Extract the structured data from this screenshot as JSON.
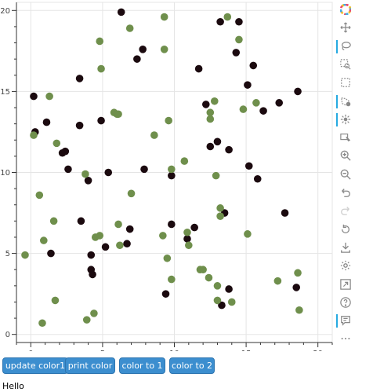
{
  "chart_data": {
    "type": "scatter",
    "xlim": [
      -1,
      21
    ],
    "ylim": [
      -0.5,
      20.5
    ],
    "x_ticks": [
      0,
      5,
      10,
      15,
      20
    ],
    "y_ticks": [
      0,
      5,
      10,
      15,
      20
    ],
    "grid": true,
    "colors": {
      "dark": "#1b0a0f",
      "green": "#6f8f4c"
    },
    "series": [
      {
        "color": "#1b0a0f",
        "points": [
          [
            0.2,
            14.7
          ],
          [
            0.3,
            12.5
          ],
          [
            1.1,
            13.1
          ],
          [
            1.4,
            5.0
          ],
          [
            2.2,
            11.2
          ],
          [
            2.4,
            11.3
          ],
          [
            2.6,
            10.2
          ],
          [
            3.4,
            15.8
          ],
          [
            3.4,
            12.9
          ],
          [
            3.5,
            7.0
          ],
          [
            4.0,
            9.5
          ],
          [
            4.2,
            4.9
          ],
          [
            4.2,
            4.0
          ],
          [
            4.3,
            3.7
          ],
          [
            4.9,
            13.2
          ],
          [
            5.2,
            5.4
          ],
          [
            5.4,
            10.0
          ],
          [
            6.3,
            19.9
          ],
          [
            6.7,
            5.6
          ],
          [
            6.9,
            6.5
          ],
          [
            7.4,
            17.0
          ],
          [
            7.8,
            17.6
          ],
          [
            7.9,
            10.2
          ],
          [
            9.4,
            2.5
          ],
          [
            9.8,
            9.8
          ],
          [
            9.8,
            6.8
          ],
          [
            10.9,
            5.9
          ],
          [
            11.4,
            6.6
          ],
          [
            11.7,
            16.4
          ],
          [
            12.2,
            14.2
          ],
          [
            12.5,
            11.6
          ],
          [
            13.0,
            11.9
          ],
          [
            13.2,
            19.3
          ],
          [
            13.3,
            1.8
          ],
          [
            13.5,
            7.5
          ],
          [
            13.8,
            11.4
          ],
          [
            13.8,
            2.8
          ],
          [
            14.3,
            17.4
          ],
          [
            14.5,
            19.3
          ],
          [
            15.1,
            15.4
          ],
          [
            15.2,
            10.4
          ],
          [
            15.5,
            16.6
          ],
          [
            15.8,
            9.6
          ],
          [
            16.2,
            13.8
          ],
          [
            17.3,
            14.3
          ],
          [
            17.7,
            7.5
          ],
          [
            18.5,
            2.9
          ],
          [
            18.6,
            15.0
          ]
        ]
      },
      {
        "color": "#6f8f4c",
        "points": [
          [
            -0.4,
            4.9
          ],
          [
            0.2,
            12.3
          ],
          [
            0.6,
            8.6
          ],
          [
            0.8,
            0.7
          ],
          [
            0.9,
            5.8
          ],
          [
            1.3,
            14.7
          ],
          [
            1.6,
            7.0
          ],
          [
            1.7,
            2.1
          ],
          [
            1.8,
            11.8
          ],
          [
            3.8,
            9.9
          ],
          [
            3.9,
            0.9
          ],
          [
            4.4,
            1.3
          ],
          [
            4.5,
            6.0
          ],
          [
            4.8,
            6.1
          ],
          [
            4.8,
            18.1
          ],
          [
            4.9,
            16.4
          ],
          [
            5.8,
            13.7
          ],
          [
            6.0,
            13.6
          ],
          [
            6.1,
            13.6
          ],
          [
            6.1,
            6.8
          ],
          [
            6.2,
            5.5
          ],
          [
            6.9,
            18.9
          ],
          [
            7.0,
            8.7
          ],
          [
            8.6,
            12.3
          ],
          [
            9.2,
            6.1
          ],
          [
            9.3,
            19.6
          ],
          [
            9.3,
            17.6
          ],
          [
            9.5,
            4.7
          ],
          [
            9.6,
            13.2
          ],
          [
            9.8,
            3.4
          ],
          [
            9.8,
            10.2
          ],
          [
            10.7,
            10.7
          ],
          [
            10.9,
            6.3
          ],
          [
            11.0,
            5.5
          ],
          [
            11.8,
            4.0
          ],
          [
            12.0,
            4.0
          ],
          [
            12.4,
            3.5
          ],
          [
            12.5,
            13.7
          ],
          [
            12.5,
            13.3
          ],
          [
            12.8,
            14.4
          ],
          [
            12.9,
            9.8
          ],
          [
            13.0,
            3.0
          ],
          [
            13.0,
            2.1
          ],
          [
            13.2,
            7.8
          ],
          [
            13.2,
            7.3
          ],
          [
            13.7,
            19.6
          ],
          [
            14.0,
            2.0
          ],
          [
            14.5,
            18.2
          ],
          [
            14.8,
            13.9
          ],
          [
            15.1,
            6.2
          ],
          [
            15.7,
            14.3
          ],
          [
            17.2,
            3.3
          ],
          [
            18.6,
            3.8
          ],
          [
            18.7,
            1.5
          ]
        ]
      }
    ]
  },
  "toolbar": {
    "tools": [
      {
        "name": "bokeh-logo-icon",
        "active": false
      },
      {
        "name": "pan-icon",
        "active": false
      },
      {
        "name": "lasso-select-icon",
        "active": true
      },
      {
        "name": "zoom-in-box-icon",
        "active": false
      },
      {
        "name": "box-select-icon",
        "active": false
      },
      {
        "name": "poly-select-icon",
        "active": true
      },
      {
        "name": "tap-icon",
        "active": true
      },
      {
        "name": "point-draw-icon",
        "active": false
      },
      {
        "name": "wheel-zoom-in-icon",
        "active": false
      },
      {
        "name": "wheel-zoom-out-icon",
        "active": false
      },
      {
        "name": "undo-icon",
        "active": false
      },
      {
        "name": "redo-icon",
        "active": false
      },
      {
        "name": "reset-icon",
        "active": false
      },
      {
        "name": "save-icon",
        "active": false
      },
      {
        "name": "gear-icon",
        "active": false
      },
      {
        "name": "fullscreen-icon",
        "active": false
      },
      {
        "name": "help-icon",
        "active": false
      },
      {
        "name": "comment-icon",
        "active": true
      },
      {
        "name": "more-icon",
        "active": false
      }
    ]
  },
  "buttons": {
    "update_color1": "update color1",
    "print_color": "print color",
    "color_to_1": "color to 1",
    "color_to_2": "color to 2"
  },
  "output_text": "Hello"
}
